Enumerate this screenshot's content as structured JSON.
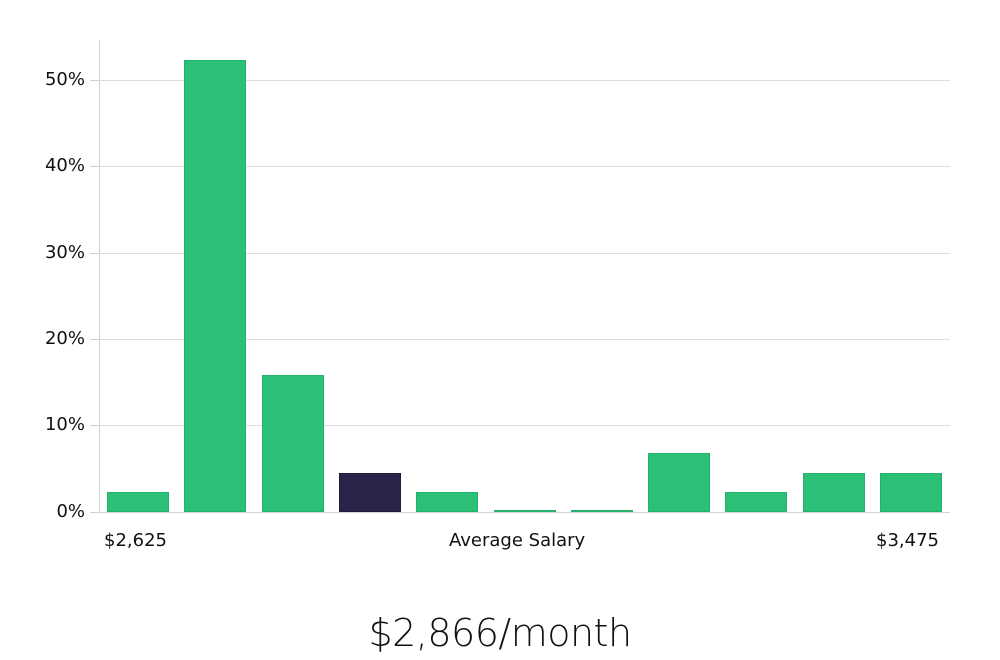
{
  "chart_data": {
    "type": "bar",
    "title": "",
    "xlabel": "Average Salary",
    "ylabel": "",
    "categories": [
      "bin1",
      "bin2",
      "bin3",
      "bin4",
      "bin5",
      "bin6",
      "bin7",
      "bin8",
      "bin9",
      "bin10",
      "bin11"
    ],
    "values": [
      2.3,
      52.3,
      15.9,
      4.5,
      2.3,
      0.1,
      0.1,
      6.8,
      2.3,
      4.5,
      4.5
    ],
    "highlight_index": 3,
    "ylim": [
      0,
      55
    ],
    "yticks": [
      "0%",
      "10%",
      "20%",
      "30%",
      "40%",
      "50%"
    ],
    "x_range_labels": {
      "min": "$2,625",
      "max": "$3,475"
    },
    "grid": true,
    "colors": {
      "bar": "#2bbf77",
      "highlight": "#29244a",
      "grid": "#dddddd"
    }
  },
  "axis": {
    "y_ticks": [
      {
        "label": "0%",
        "value": 0
      },
      {
        "label": "10%",
        "value": 10
      },
      {
        "label": "20%",
        "value": 20
      },
      {
        "label": "30%",
        "value": 30
      },
      {
        "label": "40%",
        "value": 40
      },
      {
        "label": "50%",
        "value": 50
      }
    ],
    "x_min_label": "$2,625",
    "x_center_label": "Average Salary",
    "x_max_label": "$3,475"
  },
  "summary": {
    "average_label": "$2,866/month"
  }
}
